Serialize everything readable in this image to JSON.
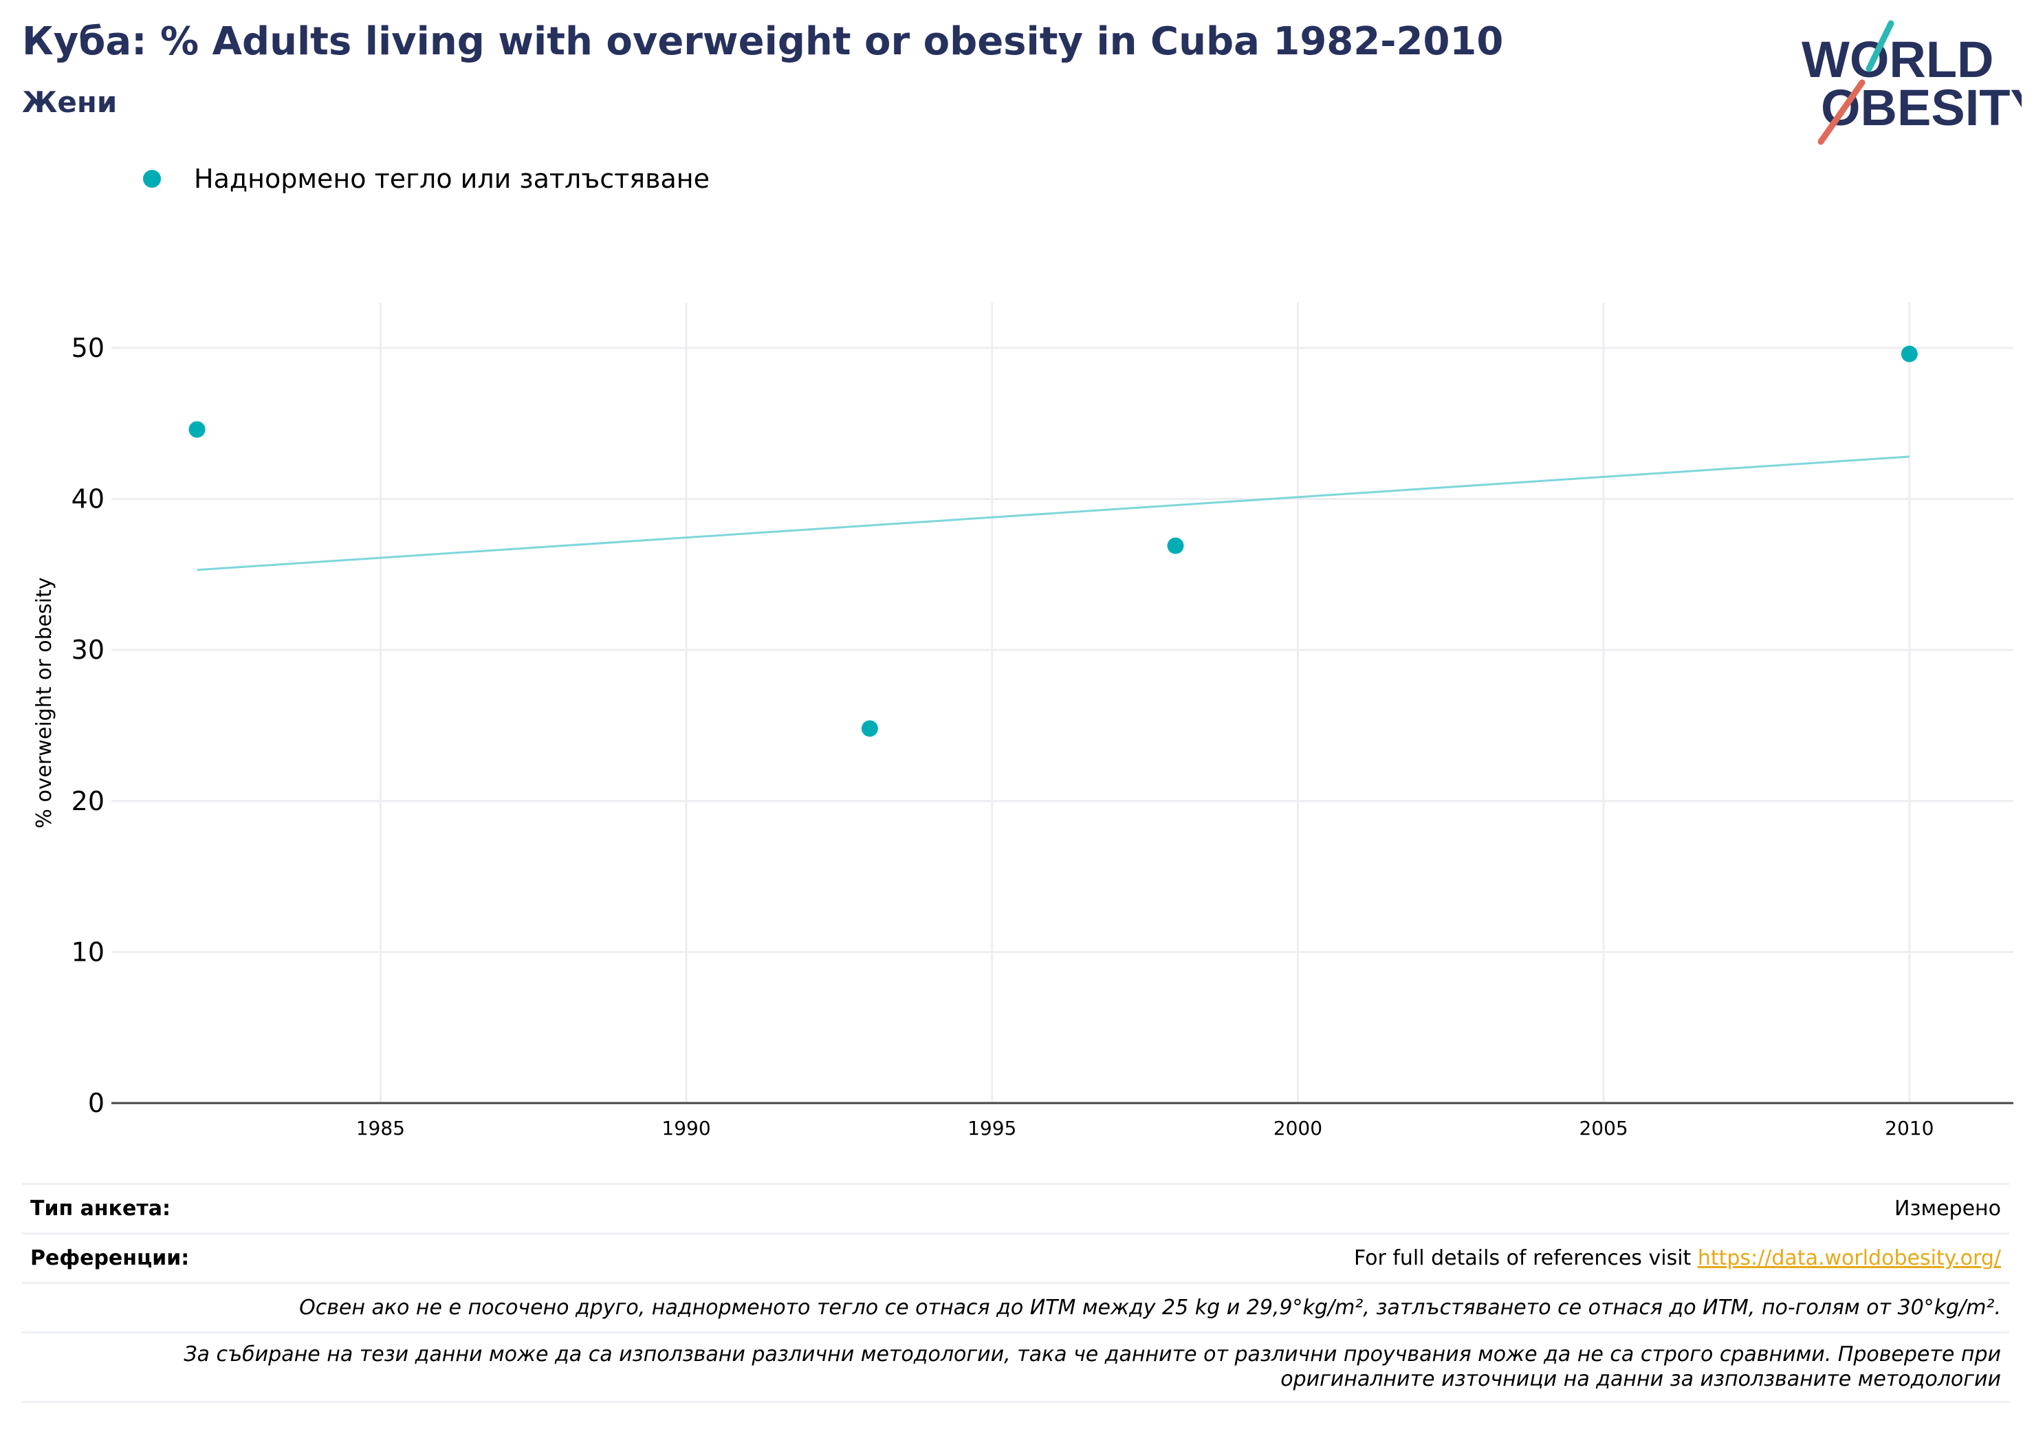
{
  "header": {
    "title": "Куба: % Adults living with overweight or obesity in Cuba 1982-2010",
    "subtitle": "Жени"
  },
  "logo": {
    "line1": "WORLD",
    "line2": "OBESITY"
  },
  "legend": {
    "label": "Наднормено тегло или затлъстяване"
  },
  "colors": {
    "series": "#00adb5",
    "trend": "#7fd6da",
    "title": "#27315d",
    "grid": "#eceef2",
    "link": "#e6a817"
  },
  "chart_data": {
    "type": "scatter",
    "ylabel": "% overweight or obesity",
    "xlabel": "",
    "xlim": [
      1980.6,
      2011.7
    ],
    "ylim": [
      0,
      53
    ],
    "x_ticks": [
      1985,
      1990,
      1995,
      2000,
      2005,
      2010
    ],
    "y_ticks": [
      0,
      10,
      20,
      30,
      40,
      50
    ],
    "grid": true,
    "legend_position": "top-left",
    "series": [
      {
        "name": "Наднормено тегло или затлъстяване",
        "x": [
          1982,
          1993,
          1998,
          2010
        ],
        "y": [
          44.6,
          24.8,
          36.9,
          49.6
        ]
      }
    ],
    "trendline": {
      "x": [
        1982,
        2010
      ],
      "y": [
        35.3,
        42.8
      ]
    }
  },
  "info": {
    "survey_type_label": "Тип анкета:",
    "survey_type_value": "Измерено",
    "references_label": "Референции:",
    "references_text": "For full details of references visit ",
    "references_link": "https://data.worldobesity.org/",
    "note1": "Освен ако не е посочено друго, наднорменото тегло се отнася до ИТМ между 25 kg и 29,9°kg/m², затлъстяването се отнася до ИТМ, по-голям от 30°kg/m².",
    "note2_line1": "За събиране на тези данни може да са използвани различни методологии, така че данните от различни проучвания може да не са строго сравними. Проверете при",
    "note2_line2": "оригиналните източници на данни за използваните методологии"
  }
}
